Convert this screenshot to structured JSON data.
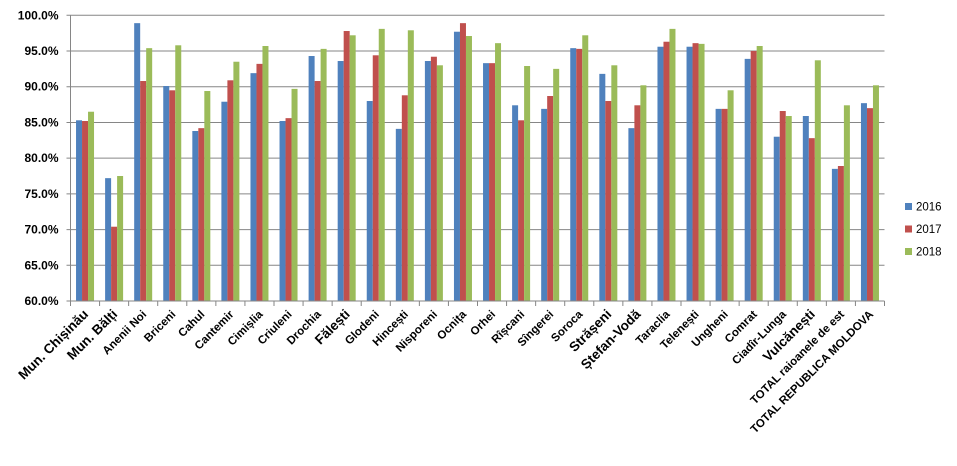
{
  "chart_data": {
    "type": "bar",
    "title": "",
    "xlabel": "",
    "ylabel": "",
    "ylim": [
      60,
      100
    ],
    "yticks": [
      "60.0%",
      "65.0%",
      "70.0%",
      "75.0%",
      "80.0%",
      "85.0%",
      "90.0%",
      "95.0%",
      "100.0%"
    ],
    "grid": true,
    "legend_position": "right",
    "categories": [
      "Mun. Chișinău",
      "Mun. Bălți",
      "Anenii Noi",
      "Briceni",
      "Cahul",
      "Cantemir",
      "Cimișlia",
      "Criuleni",
      "Drochia",
      "Fălești",
      "Glodeni",
      "Hincești",
      "Nisporeni",
      "Ocnița",
      "Orhei",
      "Rîșcani",
      "Sîngerei",
      "Soroca",
      "Strășeni",
      "Ștefan-Vodă",
      "Taraclia",
      "Telenești",
      "Ungheni",
      "Comrat",
      "Ciadîr-Lunga",
      "Vulcănești",
      "TOTAL raioanele de est",
      "TOTAL REPUBLICA MOLDOVA"
    ],
    "series": [
      {
        "name": "2016",
        "color": "#4F81BD",
        "values": [
          85.3,
          77.2,
          98.9,
          90.1,
          83.8,
          87.9,
          91.9,
          85.2,
          94.3,
          93.6,
          88.0,
          84.1,
          93.6,
          97.7,
          93.3,
          87.4,
          86.9,
          95.4,
          91.8,
          84.2,
          95.6,
          95.6,
          86.9,
          93.9,
          83.0,
          85.9,
          78.5,
          87.7
        ]
      },
      {
        "name": "2017",
        "color": "#C0504D",
        "values": [
          85.2,
          70.4,
          90.8,
          89.5,
          84.2,
          90.9,
          93.2,
          85.6,
          90.8,
          97.8,
          94.4,
          88.8,
          94.2,
          98.9,
          93.3,
          85.3,
          88.7,
          95.3,
          88.0,
          87.4,
          96.3,
          96.1,
          86.9,
          95.0,
          86.6,
          82.8,
          78.9,
          87.0
        ]
      },
      {
        "name": "2018",
        "color": "#9BBB59",
        "values": [
          86.5,
          77.5,
          95.4,
          95.8,
          89.4,
          93.5,
          95.7,
          89.7,
          95.3,
          97.2,
          98.1,
          97.9,
          93.0,
          97.1,
          96.1,
          92.9,
          92.5,
          97.2,
          93.0,
          90.2,
          98.1,
          96.0,
          89.5,
          95.7,
          85.9,
          93.7,
          87.4,
          90.2
        ]
      }
    ]
  }
}
